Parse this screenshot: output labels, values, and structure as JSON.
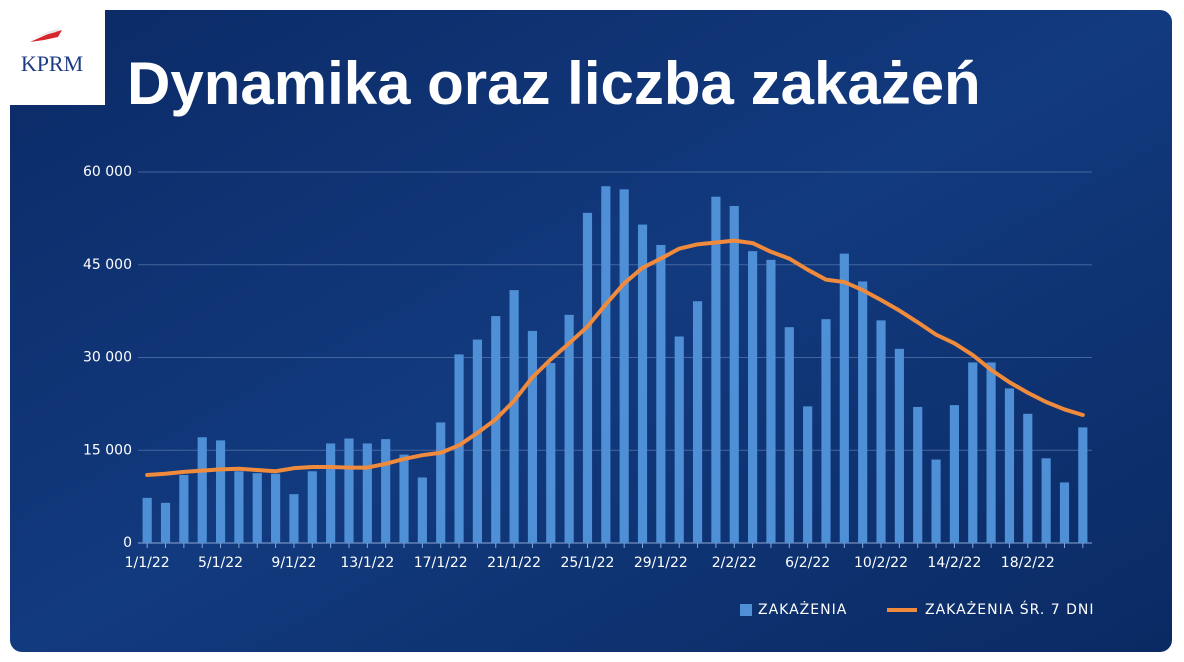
{
  "logo": "KPRM",
  "chart_data": {
    "type": "bar",
    "title": "Dynamika oraz liczba zakażeń",
    "categories": [
      "1/1/22",
      null,
      null,
      null,
      "5/1/22",
      null,
      null,
      null,
      "9/1/22",
      null,
      null,
      null,
      "13/1/22",
      null,
      null,
      null,
      "17/1/22",
      null,
      null,
      null,
      "21/1/22",
      null,
      null,
      null,
      "25/1/22",
      null,
      null,
      null,
      "29/1/22",
      null,
      null,
      null,
      "2/2/22",
      null,
      null,
      null,
      "6/2/22",
      null,
      null,
      null,
      "10/2/22",
      null,
      null,
      null,
      "14/2/22",
      null,
      null,
      null,
      "18/2/22",
      null,
      null,
      null
    ],
    "series": [
      {
        "name": "ZAKAŻENIA",
        "type": "bar",
        "color": "#4f8fd6",
        "values": [
          7300,
          6500,
          11000,
          17100,
          16600,
          11600,
          11300,
          11200,
          7900,
          11600,
          16100,
          16900,
          16100,
          16800,
          14300,
          10600,
          19500,
          30500,
          32900,
          36700,
          40900,
          34300,
          29100,
          36900,
          53400,
          57700,
          57200,
          51500,
          48200,
          33400,
          39100,
          56000,
          54500,
          47200,
          45800,
          34900,
          22100,
          36200,
          46800,
          42300,
          36000,
          31400,
          22000,
          13500,
          22300,
          29200,
          29200,
          25000,
          20900,
          13700,
          9800,
          18700
        ]
      },
      {
        "name": "ZAKAŻENIA ŚR. 7 DNI",
        "type": "line",
        "color": "#f08a3c",
        "values": [
          11000,
          11200,
          11500,
          11700,
          11900,
          12000,
          11800,
          11600,
          12100,
          12300,
          12300,
          12200,
          12200,
          12800,
          13600,
          14200,
          14600,
          15800,
          17800,
          20000,
          23000,
          26800,
          29700,
          32300,
          35000,
          38600,
          42000,
          44500,
          46000,
          47600,
          48300,
          48600,
          48900,
          48500,
          47100,
          46000,
          44200,
          42600,
          42200,
          40900,
          39300,
          37600,
          35700,
          33700,
          32300,
          30400,
          28000,
          26000,
          24300,
          22800,
          21600,
          20700
        ]
      }
    ],
    "ylim": [
      0,
      60000
    ],
    "yticks": [
      0,
      {
        "value": 15000,
        "label": "15 000"
      },
      {
        "value": 30000,
        "label": "30 000"
      },
      {
        "value": 45000,
        "label": "45 000"
      },
      {
        "value": 60000,
        "label": "60 000"
      }
    ],
    "grid": true
  }
}
